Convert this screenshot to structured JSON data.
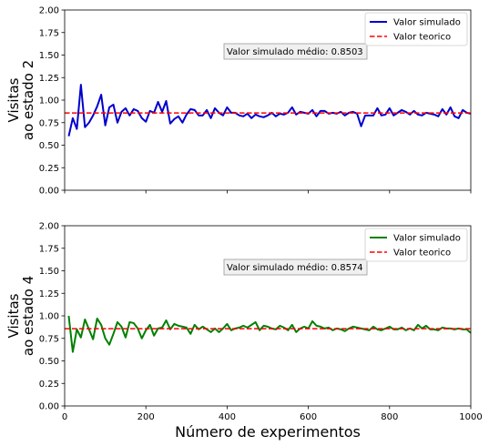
{
  "chart_data": [
    {
      "type": "line",
      "ylabel_line1": "Visitas",
      "ylabel_line2": "ao estado 2",
      "xlim": [
        0,
        1000
      ],
      "ylim": [
        0,
        2
      ],
      "xticks": [
        0,
        200,
        400,
        600,
        800,
        1000
      ],
      "yticks": [
        "0.00",
        "0.25",
        "0.50",
        "0.75",
        "1.00",
        "1.25",
        "1.50",
        "1.75",
        "2.00"
      ],
      "show_xtick_labels": false,
      "legend_position": "top-right",
      "annotation": "Valor simulado médio: 0.8503",
      "series": [
        {
          "name": "Valor simulado",
          "color": "#0000cc",
          "style": "solid",
          "x": [
            10,
            20,
            30,
            40,
            50,
            60,
            70,
            80,
            90,
            100,
            110,
            120,
            130,
            140,
            150,
            160,
            170,
            180,
            190,
            200,
            210,
            220,
            230,
            240,
            250,
            260,
            270,
            280,
            290,
            300,
            310,
            320,
            330,
            340,
            350,
            360,
            370,
            380,
            390,
            400,
            410,
            420,
            430,
            440,
            450,
            460,
            470,
            480,
            490,
            500,
            510,
            520,
            530,
            540,
            550,
            560,
            570,
            580,
            590,
            600,
            610,
            620,
            630,
            640,
            650,
            660,
            670,
            680,
            690,
            700,
            710,
            720,
            730,
            740,
            750,
            760,
            770,
            780,
            790,
            800,
            810,
            820,
            830,
            840,
            850,
            860,
            870,
            880,
            890,
            900,
            910,
            920,
            930,
            940,
            950,
            960,
            970,
            980,
            990,
            1000
          ],
          "y": [
            0.6,
            0.8,
            0.68,
            1.17,
            0.7,
            0.75,
            0.83,
            0.93,
            1.06,
            0.72,
            0.92,
            0.95,
            0.75,
            0.87,
            0.91,
            0.83,
            0.9,
            0.88,
            0.8,
            0.76,
            0.88,
            0.86,
            0.98,
            0.87,
            0.99,
            0.74,
            0.79,
            0.82,
            0.75,
            0.84,
            0.9,
            0.89,
            0.83,
            0.83,
            0.89,
            0.8,
            0.91,
            0.86,
            0.83,
            0.92,
            0.86,
            0.86,
            0.83,
            0.82,
            0.85,
            0.8,
            0.84,
            0.82,
            0.81,
            0.83,
            0.86,
            0.82,
            0.85,
            0.84,
            0.86,
            0.92,
            0.84,
            0.87,
            0.86,
            0.85,
            0.89,
            0.82,
            0.88,
            0.88,
            0.85,
            0.86,
            0.85,
            0.87,
            0.83,
            0.86,
            0.87,
            0.85,
            0.71,
            0.83,
            0.83,
            0.83,
            0.91,
            0.83,
            0.84,
            0.91,
            0.83,
            0.86,
            0.89,
            0.87,
            0.84,
            0.88,
            0.84,
            0.83,
            0.86,
            0.85,
            0.84,
            0.82,
            0.9,
            0.84,
            0.92,
            0.82,
            0.8,
            0.89,
            0.86,
            0.85
          ]
        },
        {
          "name": "Valor teorico",
          "color": "#ff0000",
          "style": "dashed",
          "x": [
            0,
            1000
          ],
          "y": [
            0.857,
            0.857
          ]
        }
      ]
    },
    {
      "type": "line",
      "xlabel": "Número de experimentos",
      "ylabel_line1": "Visitas",
      "ylabel_line2": "ao estado 4",
      "xlim": [
        0,
        1000
      ],
      "ylim": [
        0,
        2
      ],
      "xticks": [
        0,
        200,
        400,
        600,
        800,
        1000
      ],
      "yticks": [
        "0.00",
        "0.25",
        "0.50",
        "0.75",
        "1.00",
        "1.25",
        "1.50",
        "1.75",
        "2.00"
      ],
      "show_xtick_labels": true,
      "legend_position": "top-right",
      "annotation": "Valor simulado médio: 0.8574",
      "series": [
        {
          "name": "Valor simulado",
          "color": "#008000",
          "style": "solid",
          "x": [
            10,
            20,
            30,
            40,
            50,
            60,
            70,
            80,
            90,
            100,
            110,
            120,
            130,
            140,
            150,
            160,
            170,
            180,
            190,
            200,
            210,
            220,
            230,
            240,
            250,
            260,
            270,
            280,
            290,
            300,
            310,
            320,
            330,
            340,
            350,
            360,
            370,
            380,
            390,
            400,
            410,
            420,
            430,
            440,
            450,
            460,
            470,
            480,
            490,
            500,
            510,
            520,
            530,
            540,
            550,
            560,
            570,
            580,
            590,
            600,
            610,
            620,
            630,
            640,
            650,
            660,
            670,
            680,
            690,
            700,
            710,
            720,
            730,
            740,
            750,
            760,
            770,
            780,
            790,
            800,
            810,
            820,
            830,
            840,
            850,
            860,
            870,
            880,
            890,
            900,
            910,
            920,
            930,
            940,
            950,
            960,
            970,
            980,
            990,
            1000
          ],
          "y": [
            1.0,
            0.6,
            0.85,
            0.76,
            0.96,
            0.85,
            0.74,
            0.97,
            0.9,
            0.75,
            0.68,
            0.8,
            0.93,
            0.88,
            0.76,
            0.93,
            0.92,
            0.86,
            0.75,
            0.84,
            0.9,
            0.78,
            0.86,
            0.87,
            0.95,
            0.85,
            0.91,
            0.89,
            0.88,
            0.87,
            0.8,
            0.9,
            0.85,
            0.88,
            0.85,
            0.82,
            0.86,
            0.82,
            0.86,
            0.91,
            0.84,
            0.86,
            0.87,
            0.89,
            0.87,
            0.9,
            0.93,
            0.84,
            0.89,
            0.88,
            0.86,
            0.85,
            0.89,
            0.87,
            0.84,
            0.9,
            0.82,
            0.86,
            0.88,
            0.86,
            0.94,
            0.89,
            0.88,
            0.86,
            0.87,
            0.84,
            0.86,
            0.85,
            0.83,
            0.86,
            0.88,
            0.87,
            0.86,
            0.85,
            0.84,
            0.88,
            0.85,
            0.84,
            0.86,
            0.88,
            0.85,
            0.85,
            0.87,
            0.84,
            0.86,
            0.84,
            0.9,
            0.86,
            0.89,
            0.85,
            0.85,
            0.84,
            0.87,
            0.86,
            0.86,
            0.85,
            0.86,
            0.85,
            0.85,
            0.81
          ]
        },
        {
          "name": "Valor teorico",
          "color": "#ff0000",
          "style": "dashed",
          "x": [
            0,
            1000
          ],
          "y": [
            0.857,
            0.857
          ]
        }
      ]
    }
  ]
}
